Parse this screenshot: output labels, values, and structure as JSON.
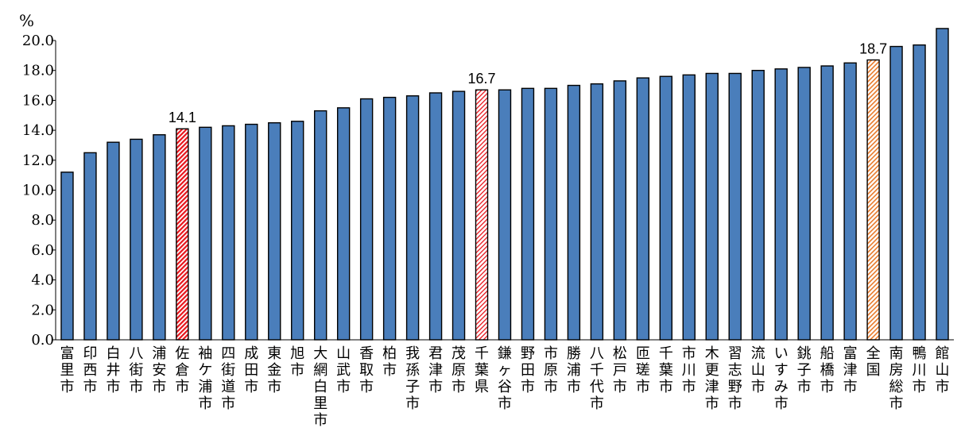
{
  "chart_data": {
    "type": "bar",
    "ylabel": "%",
    "ylim": [
      0,
      20
    ],
    "yticks": [
      "0.0",
      "2.0",
      "4.0",
      "6.0",
      "8.0",
      "10.0",
      "12.0",
      "14.0",
      "16.0",
      "18.0",
      "20.0"
    ],
    "grid": false,
    "legend": "none",
    "categories": [
      "富里市",
      "印西市",
      "白井市",
      "八街市",
      "浦安市",
      "佐倉市",
      "袖ケ浦市",
      "四街道市",
      "成田市",
      "東金市",
      "旭市",
      "大網白里市",
      "山武市",
      "香取市",
      "柏市",
      "我孫子市",
      "君津市",
      "茂原市",
      "千葉県",
      "鎌ヶ谷市",
      "野田市",
      "市原市",
      "勝浦市",
      "八千代市",
      "松戸市",
      "匝瑳市",
      "千葉市",
      "市川市",
      "木更津市",
      "習志野市",
      "流山市",
      "いすみ市",
      "銚子市",
      "船橋市",
      "富津市",
      "全国",
      "南房総市",
      "鴨川市",
      "館山市"
    ],
    "values": [
      11.2,
      12.5,
      13.2,
      13.4,
      13.7,
      14.1,
      14.2,
      14.3,
      14.4,
      14.5,
      14.6,
      15.3,
      15.5,
      16.1,
      16.2,
      16.3,
      16.5,
      16.6,
      16.7,
      16.7,
      16.8,
      16.8,
      17.0,
      17.1,
      17.3,
      17.5,
      17.6,
      17.7,
      17.8,
      17.8,
      18.0,
      18.1,
      18.2,
      18.3,
      18.5,
      18.7,
      19.6,
      19.7,
      20.8
    ],
    "data_labels": [
      {
        "category": "佐倉市",
        "text": "14.1"
      },
      {
        "category": "千葉県",
        "text": "16.7"
      },
      {
        "category": "全国",
        "text": "18.7"
      }
    ],
    "highlights": [
      {
        "category": "佐倉市",
        "pattern": "dense red hatch"
      },
      {
        "category": "千葉県",
        "pattern": "light red hatch"
      },
      {
        "category": "全国",
        "pattern": "orange hatch"
      }
    ],
    "colors": {
      "bar": "#4a7ebb",
      "bar_stroke": "#000000",
      "highlight_red": "#e8141b",
      "highlight_orange": "#e87a2a",
      "axis": "#000000"
    }
  }
}
